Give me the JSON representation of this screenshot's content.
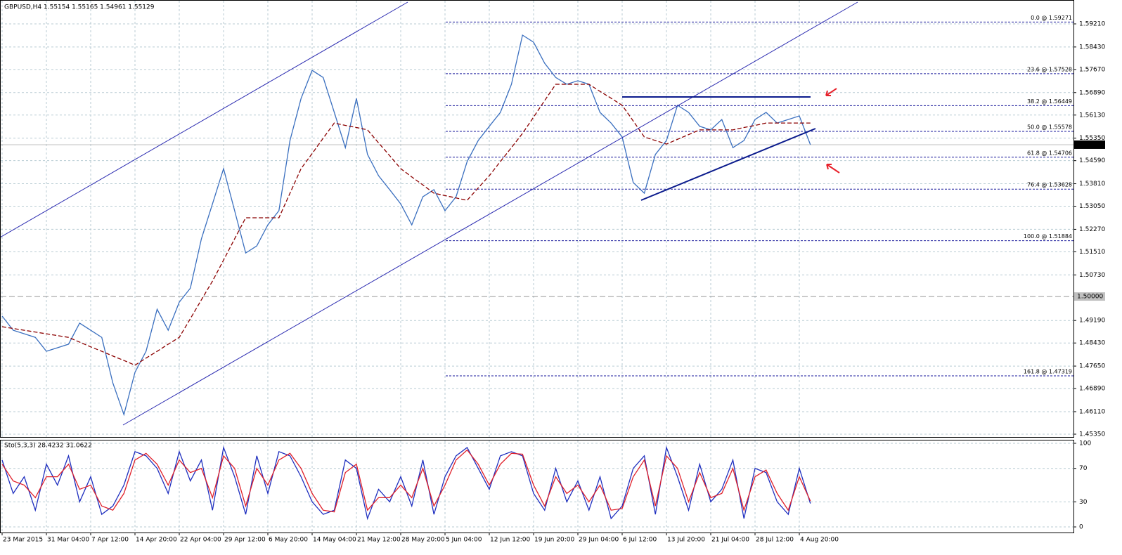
{
  "chart_data": [
    {
      "type": "line",
      "title": "GBPUSD,H4  1.55154 1.55165 1.54961 1.55129",
      "categories": [
        "23 Mar 2015",
        null,
        null,
        null,
        "31 Mar 04:00",
        null,
        null,
        null,
        "7 Apr 12:00",
        null,
        null,
        null,
        "14 Apr 20:00",
        null,
        null,
        null,
        "22 Apr 04:00",
        null,
        null,
        null,
        "29 Apr 12:00",
        null,
        null,
        null,
        "6 May 20:00",
        null,
        null,
        null,
        "14 May 04:00",
        null,
        null,
        null,
        "21 May 12:00",
        null,
        null,
        null,
        "28 May 20:00",
        null,
        null,
        null,
        "5 Jun 04:00",
        null,
        null,
        null,
        "12 Jun 12:00",
        null,
        null,
        null,
        "19 Jun 20:00",
        null,
        null,
        null,
        "29 Jun 04:00",
        null,
        null,
        null,
        "6 Jul 12:00",
        null,
        null,
        null,
        "13 Jul 20:00",
        null,
        null,
        null,
        "21 Jul 04:00",
        null,
        null,
        null,
        "28 Jul 12:00",
        null,
        null,
        null,
        "4 Aug 20:00",
        null
      ],
      "series": [
        {
          "color": "#3a6fbf",
          "values": [
            1.4934,
            1.4886,
            1.4874,
            1.4862,
            1.4815,
            1.4827,
            1.4839,
            1.491,
            1.4886,
            1.4862,
            1.4708,
            1.4601,
            1.4744,
            1.4815,
            1.4957,
            1.4886,
            1.4981,
            1.5028,
            1.5195,
            1.5313,
            1.5432,
            1.529,
            1.5147,
            1.5171,
            1.5242,
            1.529,
            1.5527,
            1.5669,
            1.5764,
            1.574,
            1.5622,
            1.5503,
            1.5669,
            1.548,
            1.5408,
            1.5361,
            1.5313,
            1.5242,
            1.5337,
            1.5361,
            1.529,
            1.5337,
            1.5456,
            1.5527,
            1.5575,
            1.5622,
            1.5717,
            1.5883,
            1.5859,
            1.5788,
            1.574,
            1.5717,
            1.5729,
            1.5717,
            1.5622,
            1.5586,
            1.5539,
            1.5385,
            1.5349,
            1.548,
            1.5527,
            1.5646,
            1.5622,
            1.5575,
            1.5563,
            1.5598,
            1.5503,
            1.5527,
            1.5598,
            1.5622,
            1.5586,
            1.5598,
            1.561,
            1.5513
          ]
        },
        {
          "color": "#8b0000",
          "dashed": true,
          "values": [
            1.4898,
            1.4892,
            1.4886,
            1.488,
            1.4874,
            1.4868,
            1.4862,
            1.4846,
            1.483,
            1.4815,
            1.4799,
            1.4784,
            1.4768,
            1.4792,
            1.4815,
            1.4839,
            1.4862,
            1.4925,
            1.4989,
            1.5052,
            1.5123,
            1.5195,
            1.5266,
            1.5266,
            1.5266,
            1.5266,
            1.5349,
            1.5432,
            1.5483,
            1.5535,
            1.5586,
            1.5578,
            1.5571,
            1.5563,
            1.5519,
            1.5476,
            1.5432,
            1.5404,
            1.5377,
            1.5349,
            1.5341,
            1.5333,
            1.5325,
            1.5367,
            1.5408,
            1.5456,
            1.5503,
            1.5551,
            1.5606,
            1.5662,
            1.5717,
            1.5717,
            1.5717,
            1.5717,
            1.5693,
            1.567,
            1.5646,
            1.5593,
            1.5539,
            1.5527,
            1.5515,
            1.5531,
            1.5547,
            1.5563,
            1.5563,
            1.5563,
            1.5563,
            1.5571,
            1.5578,
            1.5586,
            1.5586,
            1.5586,
            1.5586,
            1.5586
          ]
        }
      ],
      "ylim": [
        1.45255,
        1.60017
      ],
      "yticks": [
        {
          "value": 1.5921,
          "label": "1.59210"
        },
        {
          "value": 1.5843,
          "label": "1.58430"
        },
        {
          "value": 1.5767,
          "label": "1.57670"
        },
        {
          "value": 1.5689,
          "label": "1.56890"
        },
        {
          "value": 1.5613,
          "label": "1.56130"
        },
        {
          "value": 1.5535,
          "label": "1.55350"
        },
        {
          "value": 1.5459,
          "label": "1.54590"
        },
        {
          "value": 1.5381,
          "label": "1.53810"
        },
        {
          "value": 1.5305,
          "label": "1.53050"
        },
        {
          "value": 1.5227,
          "label": "1.52270"
        },
        {
          "value": 1.5151,
          "label": "1.51510"
        },
        {
          "value": 1.5073,
          "label": "1.50730"
        },
        {
          "value": 1.4919,
          "label": "1.49190"
        },
        {
          "value": 1.4843,
          "label": "1.48430"
        },
        {
          "value": 1.4765,
          "label": "1.47650"
        },
        {
          "value": 1.4689,
          "label": "1.46890"
        },
        {
          "value": 1.4611,
          "label": "1.46110"
        },
        {
          "value": 1.4535,
          "label": "1.45350"
        }
      ],
      "grid": true,
      "fib_levels": [
        {
          "value": 1.59271,
          "label": "0.0 @ 1.59271"
        },
        {
          "value": 1.57528,
          "label": "23.6 @ 1.57528"
        },
        {
          "value": 1.56449,
          "label": "38.2 @ 1.56449"
        },
        {
          "value": 1.55578,
          "label": "50.0 @ 1.55578"
        },
        {
          "value": 1.54706,
          "label": "61.8 @ 1.54706"
        },
        {
          "value": 1.53628,
          "label": "76.4 @ 1.53628"
        },
        {
          "value": 1.51884,
          "label": "100.0 @ 1.51884"
        },
        {
          "value": 1.47319,
          "label": "161.8 @ 1.47319"
        }
      ],
      "level_line": {
        "value": 1.5,
        "label": "1.50000"
      },
      "current_price": 1.55129
    },
    {
      "type": "line",
      "title": "Sto(5,3,3) 28.4232 31.0622",
      "series": [
        {
          "color": "#1f2fbf",
          "values": [
            80,
            40,
            60,
            20,
            75,
            50,
            85,
            30,
            60,
            15,
            25,
            50,
            90,
            85,
            70,
            40,
            90,
            55,
            80,
            20,
            95,
            60,
            15,
            85,
            40,
            90,
            85,
            60,
            30,
            15,
            20,
            80,
            70,
            10,
            45,
            30,
            60,
            25,
            80,
            15,
            60,
            85,
            95,
            70,
            45,
            85,
            90,
            85,
            40,
            20,
            70,
            30,
            55,
            20,
            60,
            10,
            25,
            70,
            85,
            15,
            95,
            60,
            20,
            75,
            30,
            45,
            80,
            10,
            70,
            65,
            30,
            15,
            70,
            28
          ]
        },
        {
          "color": "#e0202a",
          "values": [
            75,
            55,
            50,
            35,
            60,
            60,
            75,
            45,
            50,
            25,
            20,
            40,
            80,
            88,
            75,
            50,
            80,
            65,
            70,
            35,
            85,
            70,
            25,
            70,
            50,
            80,
            88,
            70,
            40,
            20,
            18,
            65,
            75,
            20,
            35,
            35,
            50,
            35,
            70,
            25,
            50,
            80,
            92,
            75,
            50,
            75,
            88,
            87,
            50,
            25,
            60,
            40,
            50,
            30,
            50,
            20,
            22,
            60,
            80,
            25,
            85,
            70,
            30,
            65,
            35,
            40,
            70,
            20,
            60,
            68,
            40,
            20,
            60,
            31
          ]
        }
      ],
      "ylim": [
        -6.7,
        104.2
      ],
      "yticks": [
        0,
        30,
        70,
        100
      ],
      "grid": true
    }
  ]
}
